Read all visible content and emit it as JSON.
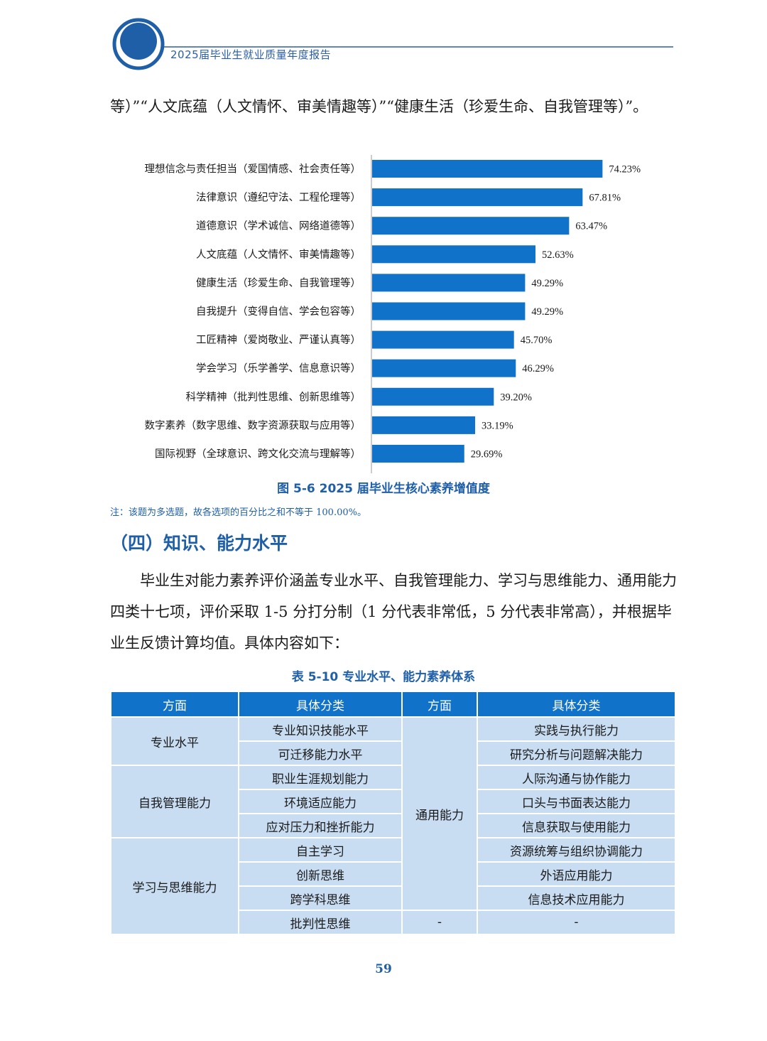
{
  "header": {
    "title": "2025届毕业生就业质量年度报告"
  },
  "intro_text": "等）”“人文底蕴（人文情怀、审美情趣等）”“健康生活（珍爱生命、自我管理等）”。",
  "chart_data": {
    "type": "bar",
    "orientation": "horizontal",
    "categories": [
      "理想信念与责任担当（爱国情感、社会责任等）",
      "法律意识（遵纪守法、工程伦理等）",
      "道德意识（学术诚信、网络道德等）",
      "人文底蕴（人文情怀、审美情趣等）",
      "健康生活（珍爱生命、自我管理等）",
      "自我提升（变得自信、学会包容等）",
      "工匠精神（爱岗敬业、严谨认真等）",
      "学会学习（乐学善学、信息意识等）",
      "科学精神（批判性思维、创新思维等）",
      "数字素养（数字思维、数字资源获取与应用等）",
      "国际视野（全球意识、跨文化交流与理解等）"
    ],
    "values": [
      74.23,
      67.81,
      63.47,
      52.63,
      49.29,
      49.29,
      45.7,
      46.29,
      39.2,
      33.19,
      29.69
    ],
    "value_labels": [
      "74.23%",
      "67.81%",
      "63.47%",
      "52.63%",
      "49.29%",
      "49.29%",
      "45.70%",
      "46.29%",
      "39.20%",
      "33.19%",
      "29.69%"
    ],
    "xlim": [
      0,
      100
    ],
    "bar_color": "#1072c9",
    "grid": false,
    "title": "图 5-6  2025 届毕业生核心素养增值度"
  },
  "note": "注：该题为多选题，故各选项的百分比之和不等于 100.00%。",
  "section_heading": "（四）知识、能力水平",
  "body_paragraph": "毕业生对能力素养评价涵盖专业水平、自我管理能力、学习与思维能力、通用能力四类十七项，评价采取 1-5 分打分制（1 分代表非常低，5 分代表非常高），并根据毕业生反馈计算均值。具体内容如下：",
  "table": {
    "title": "表 5-10  专业水平、能力素养体系",
    "headers": [
      "方面",
      "具体分类",
      "方面",
      "具体分类"
    ],
    "left_groups": [
      {
        "aspect": "专业水平",
        "items": [
          "专业知识技能水平",
          "可迁移能力水平"
        ]
      },
      {
        "aspect": "自我管理能力",
        "items": [
          "职业生涯规划能力",
          "环境适应能力",
          "应对压力和挫折能力"
        ]
      },
      {
        "aspect": "学习与思维能力",
        "items": [
          "自主学习",
          "创新思维",
          "跨学科思维",
          "批判性思维"
        ]
      }
    ],
    "right_group": {
      "aspect": "通用能力",
      "items": [
        "实践与执行能力",
        "研究分析与问题解决能力",
        "人际沟通与协作能力",
        "口头与书面表达能力",
        "信息获取与使用能力",
        "资源统筹与组织协调能力",
        "外语应用能力",
        "信息技术应用能力"
      ]
    },
    "placeholder": "-"
  },
  "page_number": "59"
}
